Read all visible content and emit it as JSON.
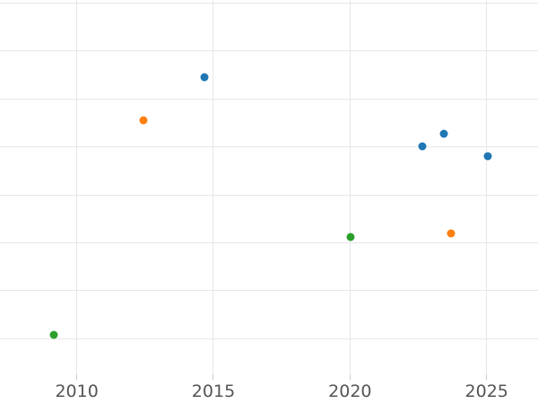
{
  "figure": {
    "background_color": "#ffffff",
    "gridline_color": "#e7e7e7",
    "tick_mark_color": "#cccccc",
    "tick_label_color": "#555555"
  },
  "chart_data": {
    "type": "scatter",
    "title": "",
    "xlabel": "",
    "ylabel": "",
    "grid": true,
    "legend": false,
    "x_ticks": [
      2010,
      2015,
      2020,
      2025
    ],
    "x_tick_labels": [
      "2010",
      "2015",
      "2020",
      "2025"
    ],
    "xlim": [
      2007.19,
      2026.88
    ],
    "ylim": [
      -0.74,
      7.06
    ],
    "y_gridlines": [
      0,
      1,
      2,
      3,
      4,
      5,
      6,
      7
    ],
    "y_tick_labels_visible": false,
    "series": [
      {
        "name": "blue-series",
        "color": "#1f77b4",
        "points": [
          {
            "x": 2014.66,
            "y": 5.46
          },
          {
            "x": 2022.64,
            "y": 4.01
          },
          {
            "x": 2023.43,
            "y": 4.28
          },
          {
            "x": 2025.04,
            "y": 3.81
          }
        ]
      },
      {
        "name": "orange-series",
        "color": "#ff7f0e",
        "points": [
          {
            "x": 2012.45,
            "y": 4.56
          },
          {
            "x": 2023.69,
            "y": 2.2
          }
        ]
      },
      {
        "name": "green-series",
        "color": "#2ca02c",
        "points": [
          {
            "x": 2009.17,
            "y": 0.08
          },
          {
            "x": 2020.03,
            "y": 2.12
          }
        ]
      }
    ]
  }
}
